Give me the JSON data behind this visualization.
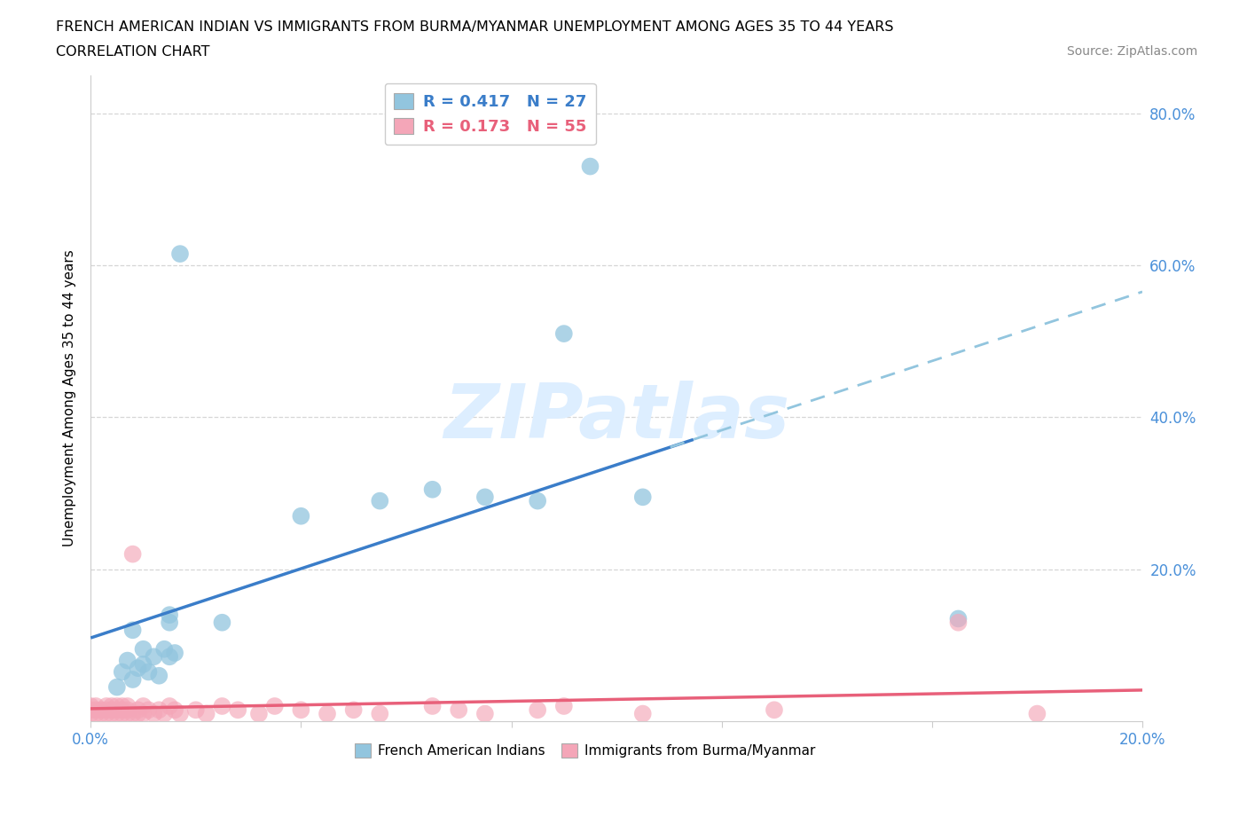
{
  "title_line1": "FRENCH AMERICAN INDIAN VS IMMIGRANTS FROM BURMA/MYANMAR UNEMPLOYMENT AMONG AGES 35 TO 44 YEARS",
  "title_line2": "CORRELATION CHART",
  "source": "Source: ZipAtlas.com",
  "ylabel": "Unemployment Among Ages 35 to 44 years",
  "xlim": [
    0.0,
    0.2
  ],
  "ylim": [
    0.0,
    0.85
  ],
  "blue_color": "#92c5de",
  "pink_color": "#f4a6b8",
  "blue_line_color": "#3a7dc9",
  "pink_line_color": "#e8607a",
  "dashed_line_color": "#92c5de",
  "watermark_color": "#ddeeff",
  "background_color": "#ffffff",
  "grid_color": "#cccccc",
  "tick_label_color": "#4a90d9",
  "blue_scatter_x": [
    0.005,
    0.006,
    0.007,
    0.008,
    0.008,
    0.009,
    0.01,
    0.01,
    0.011,
    0.012,
    0.013,
    0.014,
    0.015,
    0.015,
    0.015,
    0.016,
    0.017,
    0.025,
    0.04,
    0.055,
    0.065,
    0.075,
    0.085,
    0.09,
    0.095,
    0.105,
    0.165
  ],
  "blue_scatter_y": [
    0.045,
    0.065,
    0.08,
    0.055,
    0.12,
    0.07,
    0.075,
    0.095,
    0.065,
    0.085,
    0.06,
    0.095,
    0.085,
    0.13,
    0.14,
    0.09,
    0.615,
    0.13,
    0.27,
    0.29,
    0.305,
    0.295,
    0.29,
    0.51,
    0.73,
    0.295,
    0.135
  ],
  "pink_scatter_x": [
    0.0,
    0.0,
    0.0,
    0.001,
    0.001,
    0.001,
    0.002,
    0.002,
    0.003,
    0.003,
    0.003,
    0.004,
    0.004,
    0.004,
    0.005,
    0.005,
    0.005,
    0.006,
    0.006,
    0.006,
    0.007,
    0.007,
    0.007,
    0.008,
    0.008,
    0.009,
    0.009,
    0.01,
    0.01,
    0.011,
    0.012,
    0.013,
    0.014,
    0.015,
    0.016,
    0.017,
    0.02,
    0.022,
    0.025,
    0.028,
    0.032,
    0.035,
    0.04,
    0.045,
    0.05,
    0.055,
    0.065,
    0.07,
    0.075,
    0.085,
    0.09,
    0.105,
    0.13,
    0.165,
    0.18
  ],
  "pink_scatter_y": [
    0.01,
    0.015,
    0.02,
    0.01,
    0.015,
    0.02,
    0.01,
    0.015,
    0.01,
    0.015,
    0.02,
    0.01,
    0.015,
    0.02,
    0.01,
    0.015,
    0.02,
    0.01,
    0.015,
    0.02,
    0.01,
    0.015,
    0.02,
    0.01,
    0.22,
    0.01,
    0.015,
    0.01,
    0.02,
    0.015,
    0.01,
    0.015,
    0.01,
    0.02,
    0.015,
    0.01,
    0.015,
    0.01,
    0.02,
    0.015,
    0.01,
    0.02,
    0.015,
    0.01,
    0.015,
    0.01,
    0.02,
    0.015,
    0.01,
    0.015,
    0.02,
    0.01,
    0.015,
    0.13,
    0.01
  ]
}
